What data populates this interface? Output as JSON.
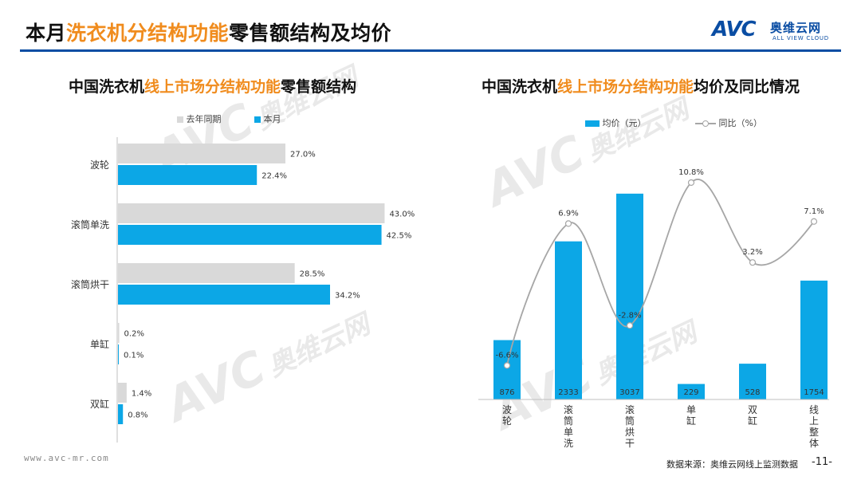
{
  "header": {
    "title_prefix": "本月",
    "title_highlight": "洗衣机分结构功能",
    "title_suffix": "零售额结构及均价",
    "logo_mark": "AVC",
    "logo_cn": "奥维云网",
    "logo_en": "ALL VIEW CLOUD"
  },
  "watermark": {
    "mark": "AVC",
    "cn": "奥维云网",
    "en": "ALL VIEW CLOUD"
  },
  "colors": {
    "accent": "#f08c1e",
    "brand": "#0a4da3",
    "bar_blue": "#0ca7e6",
    "bar_grey": "#d9d9d9",
    "line_grey": "#a6a6a6"
  },
  "left_chart": {
    "title_prefix": "中国洗衣机",
    "title_highlight": "线上市场分结构功能",
    "title_suffix": "零售额结构"
  },
  "right_chart": {
    "title_prefix": "中国洗衣机",
    "title_highlight": "线上市场分结构功能",
    "title_suffix": "均价及同比情况"
  },
  "chart_data": [
    {
      "type": "bar",
      "orientation": "horizontal",
      "title": "中国洗衣机线上市场分结构功能零售额结构",
      "categories": [
        "波轮",
        "滚筒单洗",
        "滚筒烘干",
        "单缸",
        "双缸"
      ],
      "series": [
        {
          "name": "去年同期",
          "values": [
            27.0,
            43.0,
            28.5,
            0.2,
            1.4
          ],
          "labels": [
            "27.0%",
            "43.0%",
            "28.5%",
            "0.2%",
            "1.4%"
          ]
        },
        {
          "name": "本月",
          "values": [
            22.4,
            42.5,
            34.2,
            0.1,
            0.8
          ],
          "labels": [
            "22.4%",
            "42.5%",
            "34.2%",
            "0.1%",
            "0.8%"
          ]
        }
      ],
      "legend_position": "top",
      "grid": false,
      "xlim": [
        0,
        45
      ]
    },
    {
      "type": "bar",
      "title": "中国洗衣机线上市场分结构功能均价及同比情况",
      "categories": [
        "波轮",
        "滚筒单洗",
        "滚筒烘干",
        "单缸",
        "双缸",
        "线上整体"
      ],
      "series": [
        {
          "name": "均价（元）",
          "type": "bar",
          "values": [
            876,
            2333,
            3037,
            229,
            528,
            1754
          ],
          "labels": [
            "876",
            "2333",
            "3037",
            "229",
            "528",
            "1754"
          ]
        },
        {
          "name": "同比（%）",
          "type": "line",
          "values": [
            -6.6,
            6.9,
            -2.8,
            10.8,
            3.2,
            7.1
          ],
          "labels": [
            "-6.6%",
            "6.9%",
            "-2.8%",
            "10.8%",
            "3.2%",
            "7.1%"
          ]
        }
      ],
      "legend_position": "top",
      "grid": false,
      "ylim_bar": [
        0,
        3200
      ],
      "ylim_line": [
        -9,
        13
      ]
    }
  ],
  "footer": {
    "url": "www.avc-mr.com",
    "source": "数据来源：奥维云网线上监测数据",
    "page": "-11-"
  }
}
